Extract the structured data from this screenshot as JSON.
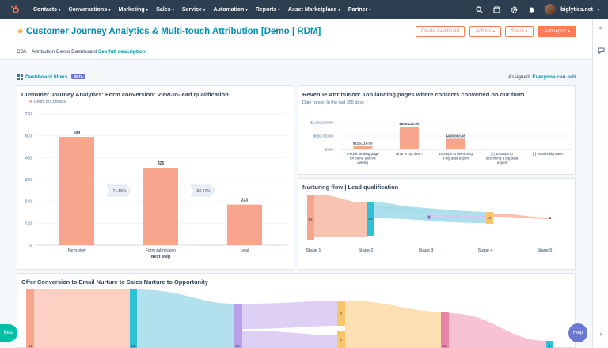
{
  "nav": {
    "items": [
      "Contacts",
      "Conversations",
      "Marketing",
      "Sales",
      "Service",
      "Automation",
      "Reports",
      "Asset Marketplace",
      "Partner"
    ],
    "account_name": "biglytics.net",
    "icons": [
      "search-icon",
      "marketplace-icon",
      "settings-icon",
      "notifications-icon"
    ]
  },
  "header": {
    "title": "Customer Journey Analytics & Multi-touch Attribution [Demo | RDM]",
    "create_dashboard": "Create dashboard",
    "actions": "Actions",
    "share": "Share",
    "add_report": "Add report",
    "description_prefix": "CJA + Attribution Demo Dashboard",
    "description_link": "See full description"
  },
  "filters": {
    "label": "Dashboard filters",
    "beta_badge": "BETA",
    "assigned_label": "Assigned:",
    "assigned_value": "Everyone can edit"
  },
  "colors": {
    "accent": "#ff7a59",
    "link": "#0091ae",
    "nav": "#2d3e50",
    "bar": "#f8a58e"
  },
  "card1": {
    "title": "Customer Journey Analytics: Form conversion: View-to-lead qualification",
    "legend": "Count of Contacts",
    "xlabel": "Next step"
  },
  "card2": {
    "title": "Revenue Attribution: Top landing pages where contacts converted on our form",
    "subtitle": "Date range: In the last 365 days"
  },
  "card3": {
    "title": "Nurturing flow | Lead qualification",
    "stages": [
      "Stage 1",
      "Stage 2",
      "Stage 3",
      "Stage 4",
      "Stage 5"
    ],
    "node_values": [
      "59",
      "50",
      "8",
      "10",
      "1"
    ]
  },
  "card4": {
    "title": "Offer Conversion to Email Nurture to Sales Nurture to Opportunity",
    "node_values": [
      "34",
      "34",
      "21",
      "7",
      "2",
      "20",
      "4"
    ]
  },
  "chart_data": [
    {
      "type": "bar",
      "title": "Customer Journey Analytics: Form conversion: View-to-lead qualification",
      "xlabel": "Next step",
      "legend": [
        "Count of Contacts"
      ],
      "categories": [
        "Form view",
        "Form submission",
        "Lead"
      ],
      "values": [
        594,
        425,
        223
      ],
      "conversion_labels": [
        "71.55%",
        "52.47%"
      ],
      "yticks": [
        "0",
        "120",
        "240",
        "360",
        "480",
        "600",
        "720"
      ],
      "ylim": [
        0,
        720
      ]
    },
    {
      "type": "bar",
      "title": "Revenue Attribution: Top landing pages where contacts converted on our form",
      "subtitle": "Date range: In the last 365 days",
      "categories": [
        "e-book landing page for elena (do not delete)",
        "what is big data?",
        "10 steps to becoming a big data expert",
        "[*] 10 steps to becoming a big data expert",
        "[*] what is big data?"
      ],
      "category_lines": [
        [
          "e-book landing page",
          "for elena (do not",
          "delete)"
        ],
        [
          "what is big data?"
        ],
        [
          "10 steps to becoming",
          "a big data expert"
        ],
        [
          "[*] 10 steps to",
          "becoming a big data",
          "expert"
        ],
        [
          "[*] what is big data?"
        ]
      ],
      "values": [
        125116.05,
        849132.0,
        400000.45,
        0,
        0
      ],
      "value_labels": [
        "$125,116.05",
        "$849,132.00",
        "$400,000.45",
        "",
        ""
      ],
      "yticks": [
        "$0.00",
        "$500,000.00",
        "$1,000,000.00"
      ],
      "ylim": [
        0,
        1000000
      ]
    }
  ]
}
